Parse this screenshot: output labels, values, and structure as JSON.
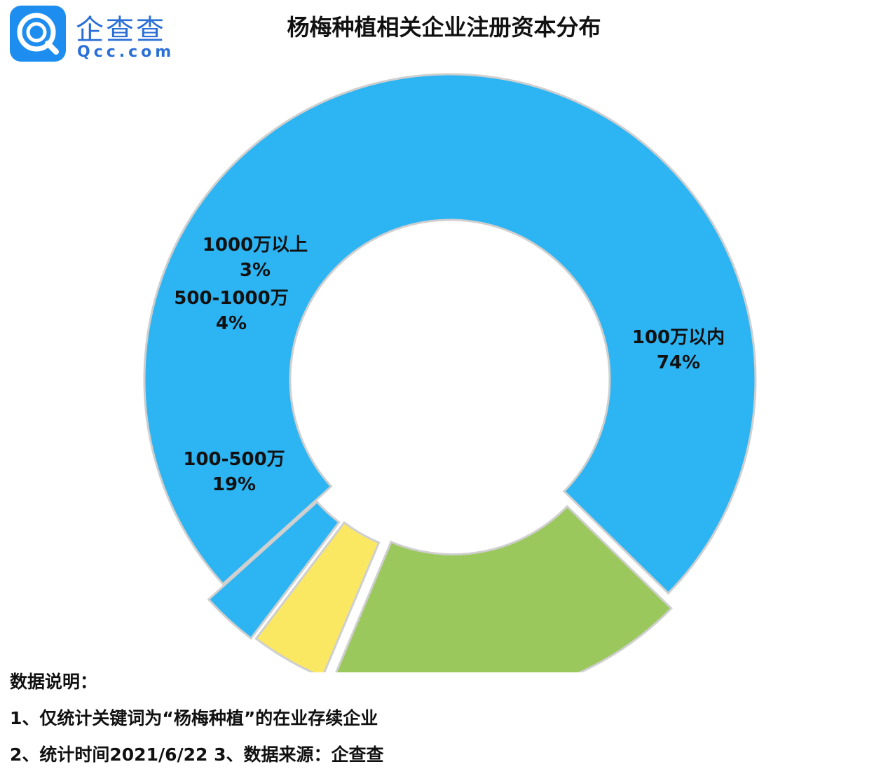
{
  "logo": {
    "cn": "企查查",
    "en": "Qcc.com"
  },
  "chart_data": {
    "type": "pie",
    "title": "杨梅种植相关企业注册资本分布",
    "donut": true,
    "slices": [
      {
        "label": "100万以内",
        "value": 74,
        "value_label": "74%",
        "color": "#2db4f2"
      },
      {
        "label": "100-500万",
        "value": 19,
        "value_label": "19%",
        "color": "#9bc85c"
      },
      {
        "label": "500-1000万",
        "value": 4,
        "value_label": "4%",
        "color": "#fae862"
      },
      {
        "label": "1000万以上",
        "value": 3,
        "value_label": "3%",
        "color": "#2db4f2"
      }
    ]
  },
  "notes": [
    "数据说明：",
    "1、仅统计关键词为“杨梅种植”的在业存续企业",
    "2、统计时间2021/6/22    3、数据来源：企查查"
  ]
}
